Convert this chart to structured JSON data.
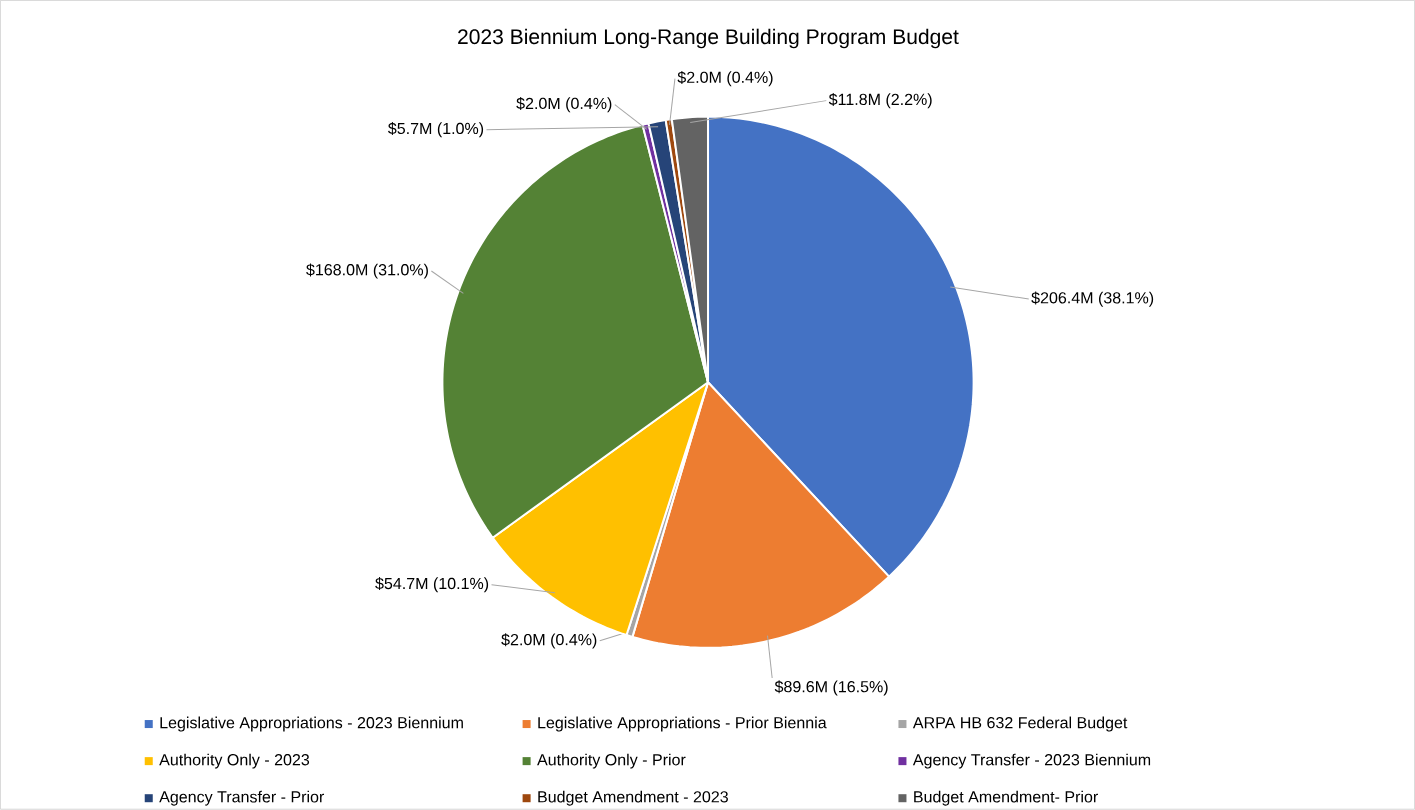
{
  "chart_data": {
    "type": "pie",
    "title": "2023 Biennium Long-Range Building Program Budget",
    "categories": [
      "Legislative Appropriations - 2023 Biennium",
      "Legislative Appropriations - Prior Biennia",
      "ARPA HB 632 Federal Budget",
      "Authority Only - 2023",
      "Authority Only - Prior",
      "Agency Transfer - 2023 Biennium",
      "Agency Transfer - Prior",
      "Budget Amendment - 2023",
      "Budget Amendment- Prior"
    ],
    "values": [
      206400000,
      89600000,
      2000000,
      54700000,
      168000000,
      2000000,
      5700000,
      2000000,
      11800000
    ],
    "value_labels": [
      "$206.4M (38.1%)",
      "$89.6M (16.5%)",
      "$2.0M (0.4%)",
      "$54.7M (10.1%)",
      "$168.0M (31.0%)",
      "$2.0M (0.4%)",
      "$5.7M (1.0%)",
      "$2.0M (0.4%)",
      "$11.8M (2.2%)"
    ],
    "colors": [
      "#4472c4",
      "#ed7d31",
      "#a5a5a5",
      "#ffc000",
      "#548235",
      "#7030a0",
      "#264478",
      "#9e480e",
      "#636363"
    ],
    "legend": "bottom"
  }
}
